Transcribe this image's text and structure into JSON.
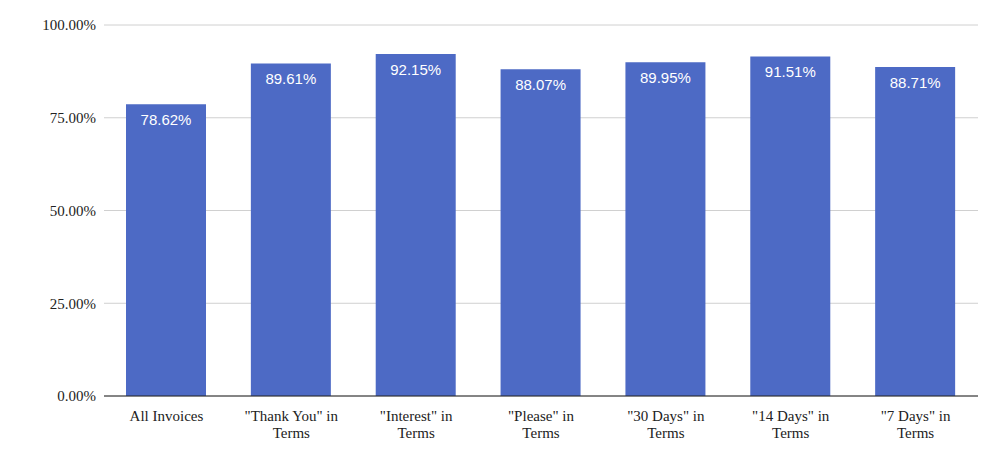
{
  "chart_data": {
    "type": "bar",
    "categories": [
      "All Invoices",
      "\"Thank You\" in Terms",
      "\"Interest\" in Terms",
      "\"Please\" in Terms",
      "\"30 Days\" in Terms",
      "\"14 Days\" in Terms",
      "\"7 Days\" in Terms"
    ],
    "values": [
      78.62,
      89.61,
      92.15,
      88.07,
      89.95,
      91.51,
      88.71
    ],
    "value_labels": [
      "78.62%",
      "89.61%",
      "92.15%",
      "88.07%",
      "89.95%",
      "91.51%",
      "88.71%"
    ],
    "color": "#4d6ac5",
    "ylim": [
      0,
      100
    ],
    "yticks": [
      {
        "value": 0,
        "label": "0.00%"
      },
      {
        "value": 25,
        "label": "25.00%"
      },
      {
        "value": 50,
        "label": "50.00%"
      },
      {
        "value": 75,
        "label": "75.00%"
      },
      {
        "value": 100,
        "label": "100.00%"
      }
    ],
    "grid": true,
    "data_labels": true
  }
}
